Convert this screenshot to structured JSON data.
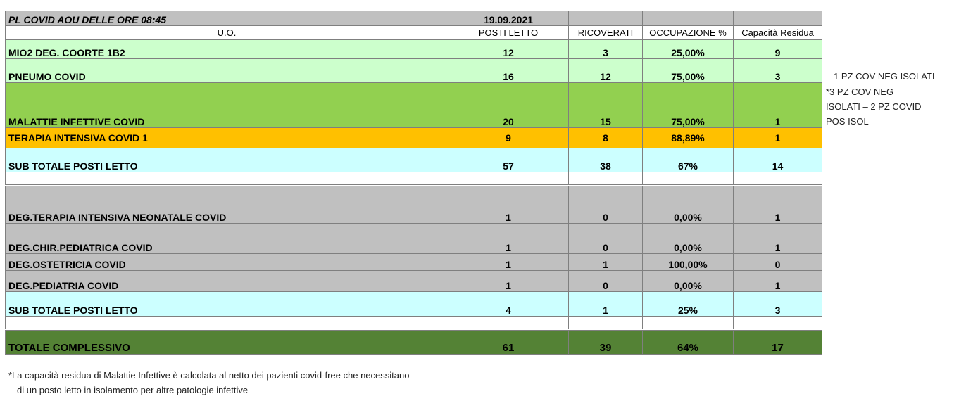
{
  "header": {
    "title": "PL COVID AOU DELLE ORE  08:45",
    "date": "19.09.2021"
  },
  "columns": {
    "uo": "U.O.",
    "posti_letto": "POSTI LETTO",
    "ricoverati": "RICOVERATI",
    "occupazione": "OCCUPAZIONE %",
    "capacita": "Capacità Residua"
  },
  "group1": [
    {
      "unit": "MIO2 DEG. COORTE 1B2",
      "posti": "12",
      "ricoverati": "3",
      "occupazione": "25,00%",
      "capacita": "9"
    },
    {
      "unit": "PNEUMO COVID",
      "posti": "16",
      "ricoverati": "12",
      "occupazione": "75,00%",
      "capacita": "3"
    },
    {
      "unit": "MALATTIE INFETTIVE COVID",
      "posti": "20",
      "ricoverati": "15",
      "occupazione": "75,00%",
      "capacita": "1"
    },
    {
      "unit": "TERAPIA INTENSIVA COVID 1",
      "posti": "9",
      "ricoverati": "8",
      "occupazione": "88,89%",
      "capacita": "1"
    }
  ],
  "subtotal1": {
    "unit": "SUB TOTALE POSTI LETTO",
    "posti": "57",
    "ricoverati": "38",
    "occupazione": "67%",
    "capacita": "14"
  },
  "group2": [
    {
      "unit": "DEG.TERAPIA INTENSIVA NEONATALE COVID",
      "posti": "1",
      "ricoverati": "0",
      "occupazione": "0,00%",
      "capacita": "1"
    },
    {
      "unit": "DEG.CHIR.PEDIATRICA COVID",
      "posti": "1",
      "ricoverati": "0",
      "occupazione": "0,00%",
      "capacita": "1"
    },
    {
      "unit": "DEG.OSTETRICIA COVID",
      "posti": "1",
      "ricoverati": "1",
      "occupazione": "100,00%",
      "capacita": "0"
    },
    {
      "unit": "DEG.PEDIATRIA COVID",
      "posti": "1",
      "ricoverati": "0",
      "occupazione": "0,00%",
      "capacita": "1"
    }
  ],
  "subtotal2": {
    "unit": "SUB TOTALE POSTI LETTO",
    "posti": "4",
    "ricoverati": "1",
    "occupazione": "25%",
    "capacita": "3"
  },
  "total": {
    "unit": "TOTALE  COMPLESSIVO",
    "posti": "61",
    "ricoverati": "39",
    "occupazione": "64%",
    "capacita": "17"
  },
  "notes": {
    "pneumo": "1 PZ COV NEG ISOLATI",
    "malattie_1": "*3 PZ COV NEG",
    "malattie_2": "ISOLATI – 2 PZ COVID",
    "malattie_3": "POS ISOL"
  },
  "footnote": {
    "line1": "*La capacità residua di Malattie Infettive è calcolata al netto dei pazienti covid-free che necessitano",
    "line2": "di un posto letto in isolamento per altre patologie infettive"
  },
  "colors": {
    "light_green": "#ccffcc",
    "mid_green": "#92d050",
    "orange": "#ffc000",
    "cyan": "#ccffff",
    "grey": "#c0c0c0",
    "dark_green": "#548235"
  }
}
